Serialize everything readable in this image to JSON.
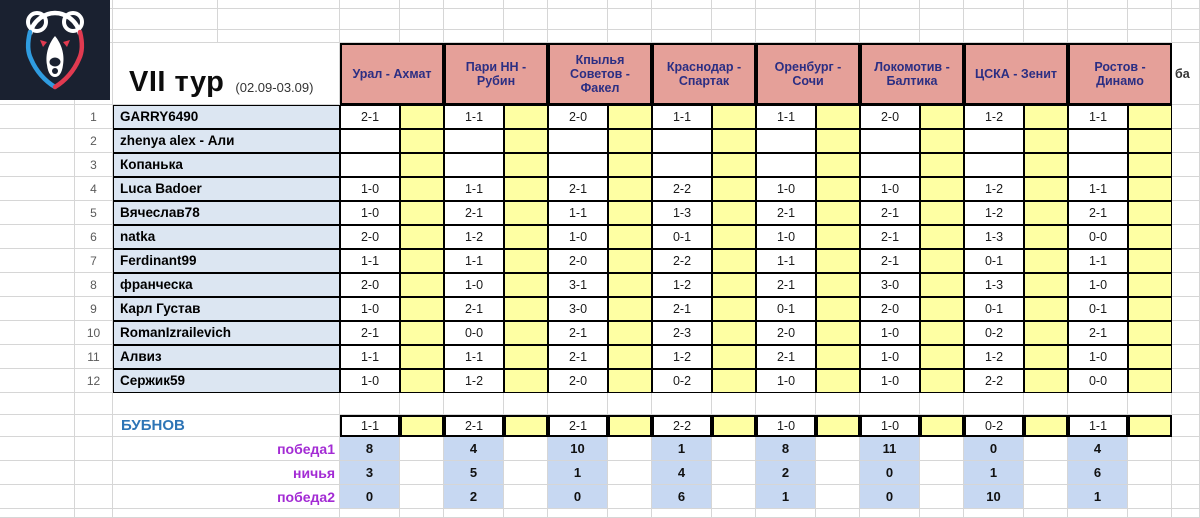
{
  "header": {
    "round_title": "VII тур",
    "round_dates": "(02.09-03.09)",
    "matches": [
      "Урал - Ахмат",
      "Пари НН - Рубин",
      "Кпылья Советов - Факел",
      "Краснодар - Спартак",
      "Оренбург - Сочи",
      "Локомотив - Балтика",
      "ЦСКА - Зенит",
      "Ростов - Динамо"
    ],
    "points_col": "ба"
  },
  "players": [
    {
      "num": "1",
      "name": "GARRY6490",
      "predictions": [
        "2-1",
        "1-1",
        "2-0",
        "1-1",
        "1-1",
        "2-0",
        "1-2",
        "1-1"
      ]
    },
    {
      "num": "2",
      "name": "zhenya alex - Али",
      "predictions": [
        "",
        "",
        "",
        "",
        "",
        "",
        "",
        ""
      ]
    },
    {
      "num": "3",
      "name": "Копанька",
      "predictions": [
        "",
        "",
        "",
        "",
        "",
        "",
        "",
        ""
      ]
    },
    {
      "num": "4",
      "name": "Luca Badoer",
      "predictions": [
        "1-0",
        "1-1",
        "2-1",
        "2-2",
        "1-0",
        "1-0",
        "1-2",
        "1-1"
      ]
    },
    {
      "num": "5",
      "name": "Вячеслав78",
      "predictions": [
        "1-0",
        "2-1",
        "1-1",
        "1-3",
        "2-1",
        "2-1",
        "1-2",
        "2-1"
      ]
    },
    {
      "num": "6",
      "name": "natka",
      "predictions": [
        "2-0",
        "1-2",
        "1-0",
        "0-1",
        "1-0",
        "2-1",
        "1-3",
        "0-0"
      ]
    },
    {
      "num": "7",
      "name": "Ferdinant99",
      "predictions": [
        "1-1",
        "1-1",
        "2-0",
        "2-2",
        "1-1",
        "2-1",
        "0-1",
        "1-1"
      ]
    },
    {
      "num": "8",
      "name": "франческа",
      "predictions": [
        "2-0",
        "1-0",
        "3-1",
        "1-2",
        "2-1",
        "3-0",
        "1-3",
        "1-0"
      ]
    },
    {
      "num": "9",
      "name": "Карл Густав",
      "predictions": [
        "1-0",
        "2-1",
        "3-0",
        "2-1",
        "0-1",
        "2-0",
        "0-1",
        "0-1"
      ]
    },
    {
      "num": "10",
      "name": "RomanIzrailevich",
      "predictions": [
        "2-1",
        "0-0",
        "2-1",
        "2-3",
        "2-0",
        "1-0",
        "0-2",
        "2-1"
      ]
    },
    {
      "num": "11",
      "name": "Алвиз",
      "predictions": [
        "1-1",
        "1-1",
        "2-1",
        "1-2",
        "2-1",
        "1-0",
        "1-2",
        "1-0"
      ]
    },
    {
      "num": "12",
      "name": "Сержик59",
      "predictions": [
        "1-0",
        "1-2",
        "2-0",
        "0-2",
        "1-0",
        "1-0",
        "2-2",
        "0-0"
      ]
    }
  ],
  "bubnov": {
    "label": "БУБНОВ",
    "predictions": [
      "1-1",
      "2-1",
      "2-1",
      "2-2",
      "1-0",
      "1-0",
      "0-2",
      "1-1"
    ]
  },
  "summary": [
    {
      "label": "победа1",
      "values": [
        "8",
        "4",
        "10",
        "1",
        "8",
        "11",
        "0",
        "4"
      ]
    },
    {
      "label": "ничья",
      "values": [
        "3",
        "5",
        "1",
        "4",
        "2",
        "0",
        "1",
        "6"
      ]
    },
    {
      "label": "победа2",
      "values": [
        "0",
        "2",
        "0",
        "6",
        "1",
        "0",
        "10",
        "1"
      ]
    }
  ],
  "colors": {
    "pink": "#e5a099",
    "navy": "#2b2e83",
    "yellow": "#feffa3",
    "namebg": "#dce6f2",
    "countbg": "#c7d8f2",
    "bubblue": "#2e75b6",
    "magenta": "#a32bd4"
  }
}
